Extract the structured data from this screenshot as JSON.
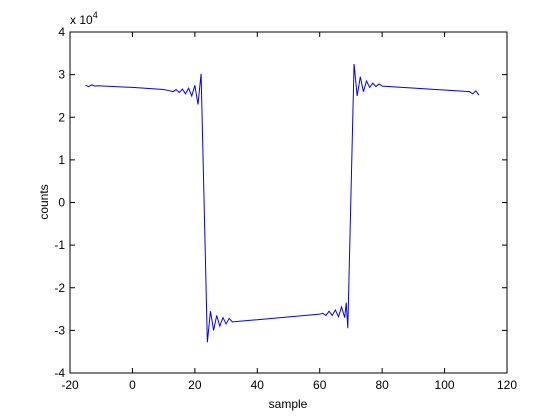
{
  "chart_data": {
    "type": "line",
    "x_label": "sample",
    "y_label": "counts",
    "y_multiplier": {
      "base": "x 10",
      "exponent": "4"
    },
    "xlim": [
      -20,
      120
    ],
    "xticks": [
      -20,
      0,
      20,
      40,
      60,
      80,
      100,
      120
    ],
    "ylim": [
      -4,
      4
    ],
    "yticks": [
      -4,
      -3,
      -2,
      -1,
      0,
      1,
      2,
      3,
      4
    ],
    "grid": false,
    "series": [
      {
        "color": "#0000ff",
        "x": [
          -15,
          -14,
          -13,
          -12,
          -11,
          0,
          10,
          12,
          13,
          14,
          15,
          16,
          17,
          18,
          19,
          20,
          21,
          22,
          24,
          25,
          26,
          27,
          28,
          29,
          30,
          31,
          32,
          40,
          60,
          61,
          62,
          63,
          64,
          65,
          66,
          67,
          68,
          68.5,
          69,
          71,
          72,
          73,
          74,
          75,
          76,
          77,
          78,
          79,
          80,
          108,
          109,
          110,
          111
        ],
        "values": [
          2.75,
          2.72,
          2.76,
          2.73,
          2.74,
          2.7,
          2.65,
          2.62,
          2.6,
          2.65,
          2.58,
          2.66,
          2.55,
          2.68,
          2.5,
          2.75,
          2.3,
          3.02,
          -3.28,
          -2.55,
          -3.0,
          -2.65,
          -2.9,
          -2.7,
          -2.85,
          -2.72,
          -2.8,
          -2.75,
          -2.62,
          -2.6,
          -2.65,
          -2.55,
          -2.65,
          -2.52,
          -2.68,
          -2.45,
          -2.7,
          -2.35,
          -2.95,
          3.25,
          2.5,
          2.95,
          2.6,
          2.85,
          2.7,
          2.8,
          2.72,
          2.78,
          2.73,
          2.6,
          2.55,
          2.62,
          2.52
        ]
      }
    ]
  }
}
